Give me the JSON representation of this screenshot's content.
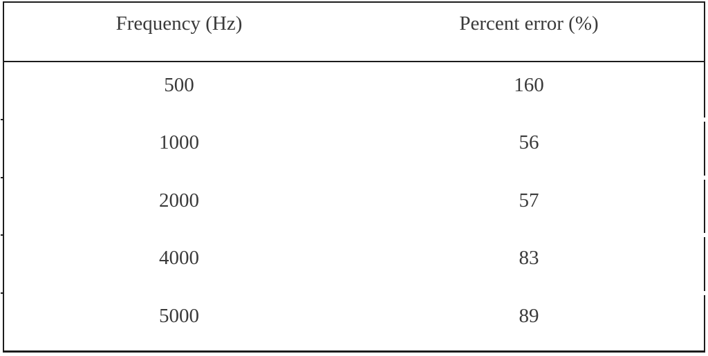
{
  "table": {
    "columns": [
      {
        "label": "Frequency (Hz)"
      },
      {
        "label": "Percent error (%)"
      }
    ],
    "rows": [
      {
        "frequency": "500",
        "percent_error": "160"
      },
      {
        "frequency": "1000",
        "percent_error": "56"
      },
      {
        "frequency": "2000",
        "percent_error": "57"
      },
      {
        "frequency": "4000",
        "percent_error": "83"
      },
      {
        "frequency": "5000",
        "percent_error": "89"
      }
    ]
  },
  "chart_data": {
    "type": "table",
    "columns": [
      "Frequency (Hz)",
      "Percent error (%)"
    ],
    "rows": [
      [
        500,
        160
      ],
      [
        1000,
        56
      ],
      [
        2000,
        57
      ],
      [
        4000,
        83
      ],
      [
        5000,
        89
      ]
    ]
  },
  "colors": {
    "border": "#1c1c1c",
    "text": "#3a3a3a",
    "background": "#ffffff"
  }
}
